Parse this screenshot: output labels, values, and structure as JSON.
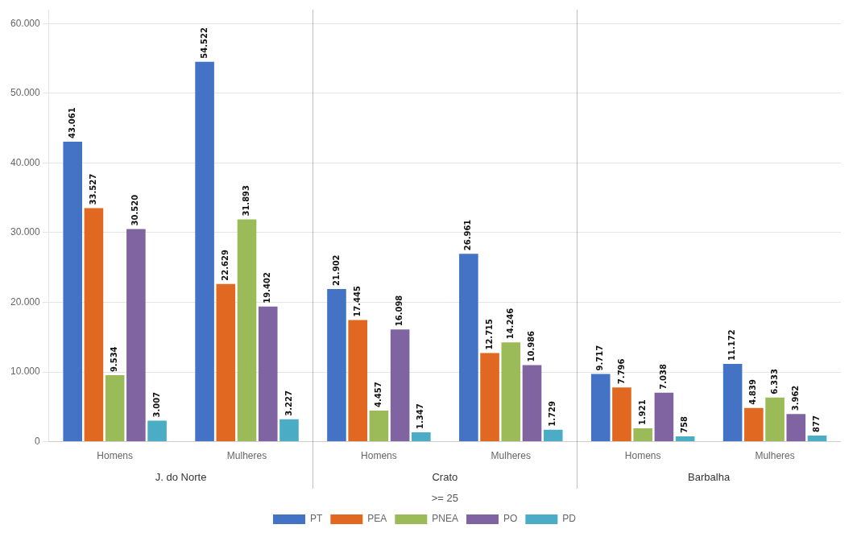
{
  "chart_data": {
    "type": "bar",
    "subtitle": ">= 25",
    "categories": [
      "Homens",
      "Mulheres",
      "Homens",
      "Mulheres",
      "Homens",
      "Mulheres"
    ],
    "annotations": [
      "J. do Norte",
      "Crato",
      "Barbalha"
    ],
    "series": [
      {
        "name": "PT",
        "color": "#4472c4",
        "values": [
          43061,
          54522,
          21902,
          26961,
          9717,
          11172
        ],
        "value_labels": [
          "43.061",
          "54.522",
          "21.902",
          "26.961",
          "9.717",
          "11.172"
        ]
      },
      {
        "name": "PEA",
        "color": "#e06820",
        "values": [
          33527,
          22629,
          17445,
          12715,
          7796,
          4839
        ],
        "value_labels": [
          "33.527",
          "22.629",
          "17.445",
          "12.715",
          "7.796",
          "4.839"
        ]
      },
      {
        "name": "PNEA",
        "color": "#9bbb59",
        "values": [
          9534,
          31893,
          4457,
          14246,
          1921,
          6333
        ],
        "value_labels": [
          "9.534",
          "31.893",
          "4.457",
          "14.246",
          "1.921",
          "6.333"
        ]
      },
      {
        "name": "PO",
        "color": "#8064a2",
        "values": [
          30520,
          19402,
          16098,
          10986,
          7038,
          3962
        ],
        "value_labels": [
          "30.520",
          "19.402",
          "16.098",
          "10.986",
          "7.038",
          "3.962"
        ]
      },
      {
        "name": "PD",
        "color": "#4bacc6",
        "values": [
          3007,
          3227,
          1347,
          1729,
          758,
          877
        ],
        "value_labels": [
          "3.007",
          "3.227",
          "1.347",
          "1.729",
          "758",
          "877"
        ]
      }
    ],
    "ylim": [
      0,
      62000
    ],
    "yticks": [
      0,
      {
        "value": 10000,
        "label": "10.000"
      },
      {
        "value": 20000,
        "label": "20.000"
      },
      {
        "value": 30000,
        "label": "30.000"
      },
      {
        "value": 40000,
        "label": "40.000"
      },
      {
        "value": 50000,
        "label": "50.000"
      },
      {
        "value": 60000,
        "label": "60.000"
      }
    ],
    "grid": true,
    "legend": "bottom",
    "data_labels": true
  }
}
